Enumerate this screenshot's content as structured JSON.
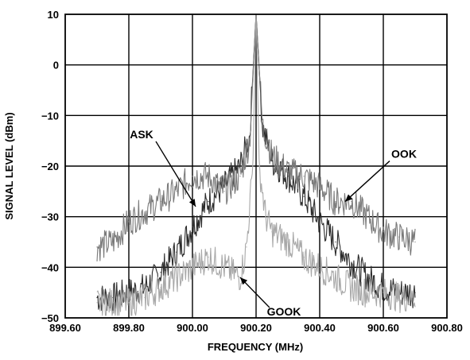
{
  "chart_data": {
    "type": "line",
    "title": "",
    "xlabel": "FREQUENCY (MHz)",
    "ylabel": "SIGNAL LEVEL (dBm)",
    "xlim": [
      899.6,
      900.8
    ],
    "ylim": [
      -50,
      10
    ],
    "x_ticks": [
      "899.60",
      "899.80",
      "900.00",
      "900.20",
      "900.40",
      "900.60",
      "900.80"
    ],
    "y_ticks": [
      "10",
      "0",
      "−10",
      "−20",
      "−30",
      "−40",
      "−50"
    ],
    "grid": true,
    "series": [
      {
        "name": "ASK",
        "color": "#2b2b2b",
        "x": [
          899.7,
          899.75,
          899.8,
          899.85,
          899.9,
          899.95,
          900.0,
          900.05,
          900.1,
          900.15,
          900.18,
          900.2,
          900.22,
          900.25,
          900.3,
          900.35,
          900.4,
          900.45,
          900.5,
          900.55,
          900.6,
          900.65,
          900.7
        ],
        "y": [
          -46,
          -46,
          -45,
          -44,
          -41,
          -37,
          -32,
          -27,
          -24,
          -20,
          -14,
          10,
          -12,
          -19,
          -22,
          -26,
          -31,
          -35,
          -39,
          -42,
          -44,
          -45,
          -45
        ]
      },
      {
        "name": "OOK",
        "color": "#7a7a7a",
        "x": [
          899.7,
          899.75,
          899.8,
          899.85,
          899.9,
          899.95,
          900.0,
          900.05,
          900.1,
          900.15,
          900.18,
          900.2,
          900.22,
          900.25,
          900.3,
          900.35,
          900.4,
          900.45,
          900.5,
          900.55,
          900.6,
          900.65,
          900.7
        ],
        "y": [
          -36,
          -35,
          -31,
          -29,
          -27,
          -25,
          -22,
          -22,
          -25,
          -22,
          -15,
          10,
          -12,
          -18,
          -21,
          -22,
          -24,
          -27,
          -27,
          -30,
          -33,
          -34,
          -35
        ]
      },
      {
        "name": "GOOK",
        "color": "#a8a8a8",
        "x": [
          899.7,
          899.75,
          899.8,
          899.85,
          899.9,
          899.95,
          900.0,
          900.05,
          900.1,
          900.15,
          900.17,
          900.19,
          900.2,
          900.21,
          900.23,
          900.25,
          900.3,
          900.35,
          900.4,
          900.45,
          900.5,
          900.55,
          900.6,
          900.65,
          900.7
        ],
        "y": [
          -47,
          -47,
          -47,
          -46,
          -44,
          -42,
          -40,
          -38,
          -40,
          -42,
          -36,
          -20,
          10,
          -20,
          -30,
          -33,
          -35,
          -38,
          -40,
          -42,
          -44,
          -45,
          -45,
          -46,
          -46
        ]
      }
    ],
    "annotations": [
      {
        "text": "ASK",
        "points_to": [
          900.01,
          -28
        ]
      },
      {
        "text": "OOK",
        "points_to": [
          900.48,
          -27
        ]
      },
      {
        "text": "GOOK",
        "points_to": [
          900.15,
          -42
        ]
      }
    ]
  }
}
